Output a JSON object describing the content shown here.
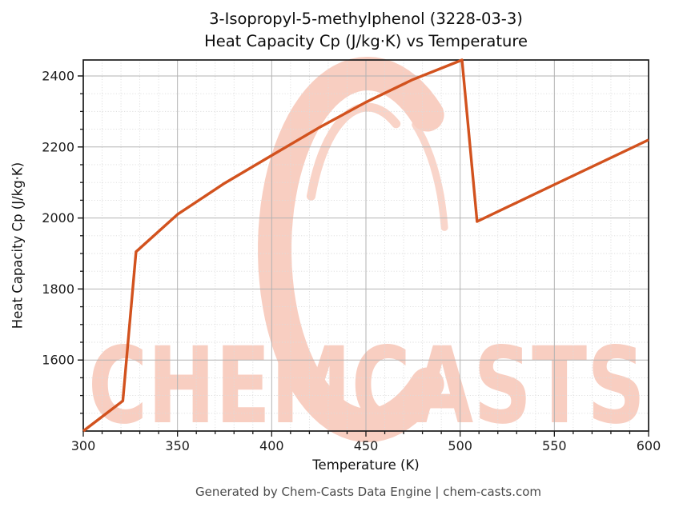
{
  "title_line1": "3-Isopropyl-5-methylphenol (3228-03-3)",
  "title_line2": "Heat Capacity Cp (J/kg·K) vs Temperature",
  "footer": "Generated by Chem-Casts Data Engine | chem-casts.com",
  "watermark": {
    "text": "CHEMCASTS",
    "logo": "chemcasts-c-swoosh-logo",
    "color": "#f8cec1"
  },
  "chart_data": {
    "type": "line",
    "title": "3-Isopropyl-5-methylphenol (3228-03-3)\nHeat Capacity Cp (J/kg·K) vs Temperature",
    "xlabel": "Temperature (K)",
    "ylabel": "Heat Capacity Cp (J/kg·K)",
    "xlim": [
      300,
      600
    ],
    "ylim": [
      1400,
      2445
    ],
    "x_major_ticks": [
      300,
      350,
      400,
      450,
      500,
      550,
      600
    ],
    "y_major_ticks": [
      1600,
      1800,
      2000,
      2200,
      2400
    ],
    "x_minor_step": 10,
    "y_minor_step": 50,
    "grid": true,
    "legend": "none",
    "line_color": "#d2521e",
    "series": [
      {
        "name": "Heat Capacity Cp",
        "points": [
          [
            300,
            1400
          ],
          [
            321,
            1485
          ],
          [
            328,
            1905
          ],
          [
            350,
            2010
          ],
          [
            375,
            2098
          ],
          [
            400,
            2176
          ],
          [
            425,
            2254
          ],
          [
            450,
            2326
          ],
          [
            475,
            2390
          ],
          [
            501,
            2445
          ],
          [
            509,
            1990
          ],
          [
            550,
            2094
          ],
          [
            600,
            2220
          ]
        ]
      }
    ]
  }
}
